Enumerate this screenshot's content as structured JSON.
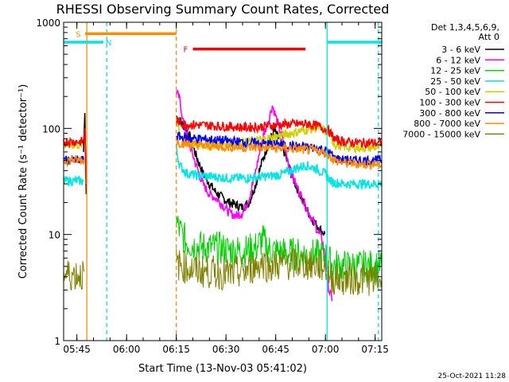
{
  "chart_data": {
    "type": "line",
    "title": "RHESSI Observing Summary Count Rates, Corrected",
    "xlabel": "Start Time (13-Nov-03 05:41:02)",
    "ylabel": "Corrected Count Rate (s⁻¹ detector⁻¹)",
    "y_scale": "log",
    "ylim": [
      1,
      1000
    ],
    "xlim_minutes": [
      0,
      96
    ],
    "x_ticks": [
      {
        "t": 4,
        "label": "05:45"
      },
      {
        "t": 19,
        "label": "06:00"
      },
      {
        "t": 34,
        "label": "06:15"
      },
      {
        "t": 49,
        "label": "06:30"
      },
      {
        "t": 64,
        "label": "06:45"
      },
      {
        "t": 79,
        "label": "07:00"
      },
      {
        "t": 94,
        "label": "07:15"
      }
    ],
    "y_ticks": [
      {
        "v": 1,
        "label": "1"
      },
      {
        "v": 10,
        "label": "10"
      },
      {
        "v": 100,
        "label": "100"
      },
      {
        "v": 1000,
        "label": "1000"
      }
    ],
    "legend_header": [
      "Det 1,3,4,5,6,9,",
      "Att 0"
    ],
    "series": [
      {
        "name": "3 - 6 keV",
        "color": "#000000",
        "points": [
          [
            34,
            130
          ],
          [
            36,
            110
          ],
          [
            38,
            85
          ],
          [
            40,
            55
          ],
          [
            42,
            38
          ],
          [
            44,
            30
          ],
          [
            46,
            25
          ],
          [
            48,
            22
          ],
          [
            50,
            20
          ],
          [
            52,
            19
          ],
          [
            54,
            18
          ],
          [
            56,
            20
          ],
          [
            58,
            30
          ],
          [
            60,
            50
          ],
          [
            62,
            75
          ],
          [
            63.5,
            95
          ],
          [
            65,
            80
          ],
          [
            67,
            55
          ],
          [
            69,
            35
          ],
          [
            71,
            25
          ],
          [
            73,
            18
          ],
          [
            75,
            14
          ],
          [
            77,
            11.5
          ],
          [
            79,
            10
          ]
        ]
      },
      {
        "name": "6 - 12 keV",
        "color": "#ff00ff",
        "points": [
          [
            34,
            220
          ],
          [
            35,
            190
          ],
          [
            36,
            120
          ],
          [
            38,
            70
          ],
          [
            40,
            45
          ],
          [
            42,
            30
          ],
          [
            44,
            24
          ],
          [
            46,
            22
          ],
          [
            48,
            19
          ],
          [
            50,
            16
          ],
          [
            52,
            15
          ],
          [
            54,
            16
          ],
          [
            56,
            22
          ],
          [
            58,
            40
          ],
          [
            60,
            80
          ],
          [
            62,
            125
          ],
          [
            63,
            165
          ],
          [
            64,
            130
          ],
          [
            66,
            80
          ],
          [
            68,
            45
          ],
          [
            70,
            30
          ],
          [
            72,
            22
          ],
          [
            74,
            16
          ],
          [
            76,
            12
          ],
          [
            78,
            9
          ],
          [
            79,
            6
          ],
          [
            80,
            3
          ],
          [
            81,
            2.5
          ]
        ]
      },
      {
        "name": "12 - 25 keV",
        "color": "#00d000",
        "points": [
          [
            34,
            13
          ],
          [
            35,
            11
          ],
          [
            37,
            8.5
          ],
          [
            40,
            7.8
          ],
          [
            43,
            7.5
          ],
          [
            46,
            7.5
          ],
          [
            49,
            7.2
          ],
          [
            52,
            7
          ],
          [
            55,
            7
          ],
          [
            58,
            7.5
          ],
          [
            60,
            9
          ],
          [
            62,
            7.2
          ],
          [
            65,
            6.8
          ],
          [
            68,
            6.6
          ],
          [
            71,
            6.5
          ],
          [
            74,
            6.4
          ],
          [
            77,
            6.3
          ],
          [
            79,
            6.2
          ],
          [
            81,
            5.2
          ],
          [
            85,
            5
          ],
          [
            88,
            5
          ],
          [
            92,
            5
          ],
          [
            96,
            5
          ]
        ]
      },
      {
        "name": "25 - 50 keV",
        "color": "#00e5e5",
        "points": [
          [
            0,
            32
          ],
          [
            6,
            32
          ],
          [
            34,
            65
          ],
          [
            35,
            45
          ],
          [
            37,
            38
          ],
          [
            40,
            36
          ],
          [
            45,
            35
          ],
          [
            50,
            34
          ],
          [
            55,
            34
          ],
          [
            60,
            35
          ],
          [
            64,
            36
          ],
          [
            67,
            38
          ],
          [
            70,
            42
          ],
          [
            73,
            45
          ],
          [
            76,
            42
          ],
          [
            79,
            37
          ],
          [
            81,
            31
          ],
          [
            85,
            30
          ],
          [
            90,
            30
          ],
          [
            96,
            30
          ]
        ]
      },
      {
        "name": "50 - 100 keV",
        "color": "#d0d000",
        "points": [
          [
            0,
            70
          ],
          [
            6,
            70
          ],
          [
            34,
            120
          ],
          [
            36,
            75
          ],
          [
            40,
            70
          ],
          [
            45,
            70
          ],
          [
            50,
            72
          ],
          [
            55,
            74
          ],
          [
            60,
            78
          ],
          [
            65,
            85
          ],
          [
            70,
            92
          ],
          [
            74,
            98
          ],
          [
            77,
            102
          ],
          [
            80,
            90
          ],
          [
            82,
            70
          ],
          [
            86,
            66
          ],
          [
            90,
            66
          ],
          [
            96,
            66
          ]
        ]
      },
      {
        "name": "100 - 300 keV",
        "color": "#ff0000",
        "points": [
          [
            0,
            75
          ],
          [
            6,
            75
          ],
          [
            34,
            120
          ],
          [
            36,
            110
          ],
          [
            40,
            108
          ],
          [
            45,
            106
          ],
          [
            50,
            104
          ],
          [
            55,
            102
          ],
          [
            60,
            104
          ],
          [
            65,
            108
          ],
          [
            70,
            110
          ],
          [
            74,
            110
          ],
          [
            77,
            105
          ],
          [
            80,
            95
          ],
          [
            82,
            78
          ],
          [
            86,
            74
          ],
          [
            90,
            73
          ],
          [
            96,
            73
          ]
        ]
      },
      {
        "name": "300 - 800 keV",
        "color": "#0000ff",
        "points": [
          [
            0,
            50
          ],
          [
            6,
            50
          ],
          [
            34,
            85
          ],
          [
            36,
            82
          ],
          [
            40,
            80
          ],
          [
            45,
            78
          ],
          [
            50,
            76
          ],
          [
            55,
            74
          ],
          [
            60,
            72
          ],
          [
            65,
            70
          ],
          [
            70,
            68
          ],
          [
            75,
            66
          ],
          [
            78,
            64
          ],
          [
            80,
            60
          ],
          [
            82,
            52
          ],
          [
            86,
            50
          ],
          [
            90,
            50
          ],
          [
            96,
            50
          ]
        ]
      },
      {
        "name": "800 - 7000 keV",
        "color": "#ff8c00",
        "points": [
          [
            0,
            50
          ],
          [
            6,
            50
          ],
          [
            34,
            75
          ],
          [
            36,
            72
          ],
          [
            40,
            70
          ],
          [
            45,
            68
          ],
          [
            50,
            67
          ],
          [
            55,
            66
          ],
          [
            60,
            66
          ],
          [
            65,
            65
          ],
          [
            70,
            64
          ],
          [
            75,
            62
          ],
          [
            78,
            60
          ],
          [
            80,
            56
          ],
          [
            82,
            49
          ],
          [
            86,
            47
          ],
          [
            90,
            46
          ],
          [
            96,
            46
          ]
        ]
      },
      {
        "name": "7000 - 15000 keV",
        "color": "#808000",
        "points": [
          [
            0,
            4.2
          ],
          [
            6,
            4.2
          ],
          [
            34,
            5.3
          ],
          [
            36,
            5
          ],
          [
            40,
            4.6
          ],
          [
            45,
            4.4
          ],
          [
            50,
            4.2
          ],
          [
            55,
            4.5
          ],
          [
            60,
            5.5
          ],
          [
            62,
            5
          ],
          [
            65,
            5.2
          ],
          [
            70,
            5.3
          ],
          [
            75,
            5.2
          ],
          [
            79,
            5
          ],
          [
            81,
            3.8
          ],
          [
            86,
            3.8
          ],
          [
            90,
            3.8
          ],
          [
            96,
            3.8
          ]
        ]
      }
    ],
    "annotations": [
      {
        "label": "S",
        "color": "#ff8c00",
        "y": 780,
        "t_start": 6.5,
        "t_end": 34
      },
      {
        "label": "N",
        "color": "#00e5e5",
        "y": 650,
        "t_start": 0,
        "t_end": 12
      },
      {
        "label": "N",
        "color": "#00e5e5",
        "y": 650,
        "t_start": 79.5,
        "t_end": 96
      },
      {
        "label": "F",
        "color": "#ff0000",
        "y": 560,
        "t_start": 39,
        "t_end": 73
      }
    ],
    "vertical_lines": [
      {
        "t": 7,
        "color": "#ff8c00",
        "dashed": false
      },
      {
        "t": 13,
        "color": "#00e5e5",
        "dashed": true
      },
      {
        "t": 34,
        "color": "#ff8c00",
        "dashed": true
      },
      {
        "t": 79.5,
        "color": "#00e5e5",
        "dashed": false
      },
      {
        "t": 95,
        "color": "#00e5e5",
        "dashed": true
      }
    ],
    "pre_spike": [
      {
        "color": "#000000",
        "base": 60,
        "peak": 140
      },
      {
        "color": "#ff0000",
        "base": 75,
        "peak": 100
      }
    ]
  },
  "footer_date": "25-Oct-2021 11:28"
}
